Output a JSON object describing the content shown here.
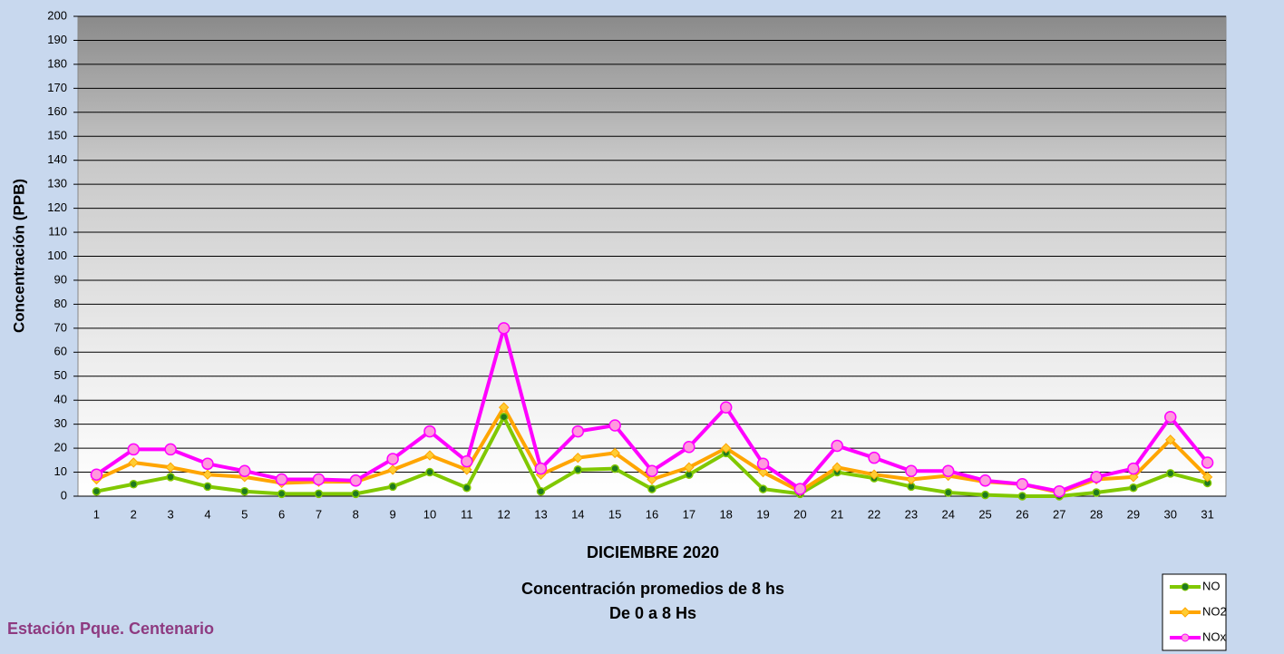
{
  "chart_data": {
    "type": "line",
    "title": "DICIEMBRE 2020",
    "subtitles": [
      "Concentración promedios de 8 hs",
      "De 0 a 8 Hs"
    ],
    "station": "Estación Pque. Centenario",
    "y_label": "Concentración  (PPB)",
    "categories": [
      "1",
      "2",
      "3",
      "4",
      "5",
      "6",
      "7",
      "8",
      "9",
      "10",
      "11",
      "12",
      "13",
      "14",
      "15",
      "16",
      "17",
      "18",
      "19",
      "20",
      "21",
      "22",
      "23",
      "24",
      "25",
      "26",
      "27",
      "28",
      "29",
      "30",
      "31"
    ],
    "series": [
      {
        "name": "NO",
        "color": "#80c800",
        "marker_color": "#1f7a1f",
        "marker": "circle",
        "values": [
          2,
          5,
          8,
          4,
          2,
          1,
          1,
          1,
          4,
          10,
          3.5,
          33,
          2,
          11,
          11.5,
          3,
          9,
          18,
          3,
          1,
          10,
          7.5,
          4,
          1.5,
          0.5,
          0,
          0,
          1.5,
          3.5,
          9.5,
          5.5
        ]
      },
      {
        "name": "NO2",
        "color": "#ffa500",
        "marker_color": "#ffcc33",
        "marker": "diamond",
        "values": [
          7,
          14,
          12,
          9,
          8,
          5.5,
          6,
          6,
          11,
          17,
          11,
          37,
          9,
          16,
          18,
          7,
          12,
          20,
          10,
          2,
          12,
          9,
          7,
          8.5,
          6,
          5,
          1.5,
          7,
          8,
          23.5,
          8
        ]
      },
      {
        "name": "NOx",
        "color": "#ff00ff",
        "marker_color": "#ff99dd",
        "marker": "circle",
        "values": [
          9,
          19.5,
          19.5,
          13.5,
          10.5,
          7,
          7,
          6.5,
          15.5,
          27,
          14.5,
          70,
          11.5,
          27,
          29.5,
          10.5,
          20.5,
          37,
          13.5,
          3,
          21,
          16,
          10.5,
          10.5,
          6.5,
          5,
          2,
          8,
          11.5,
          33,
          14
        ]
      }
    ],
    "ylim": [
      0,
      200
    ],
    "yticks": [
      0,
      10,
      20,
      30,
      40,
      50,
      60,
      70,
      80,
      90,
      100,
      110,
      120,
      130,
      140,
      150,
      160,
      170,
      180,
      190,
      200
    ],
    "grid": true,
    "legend": "bottom-right"
  }
}
